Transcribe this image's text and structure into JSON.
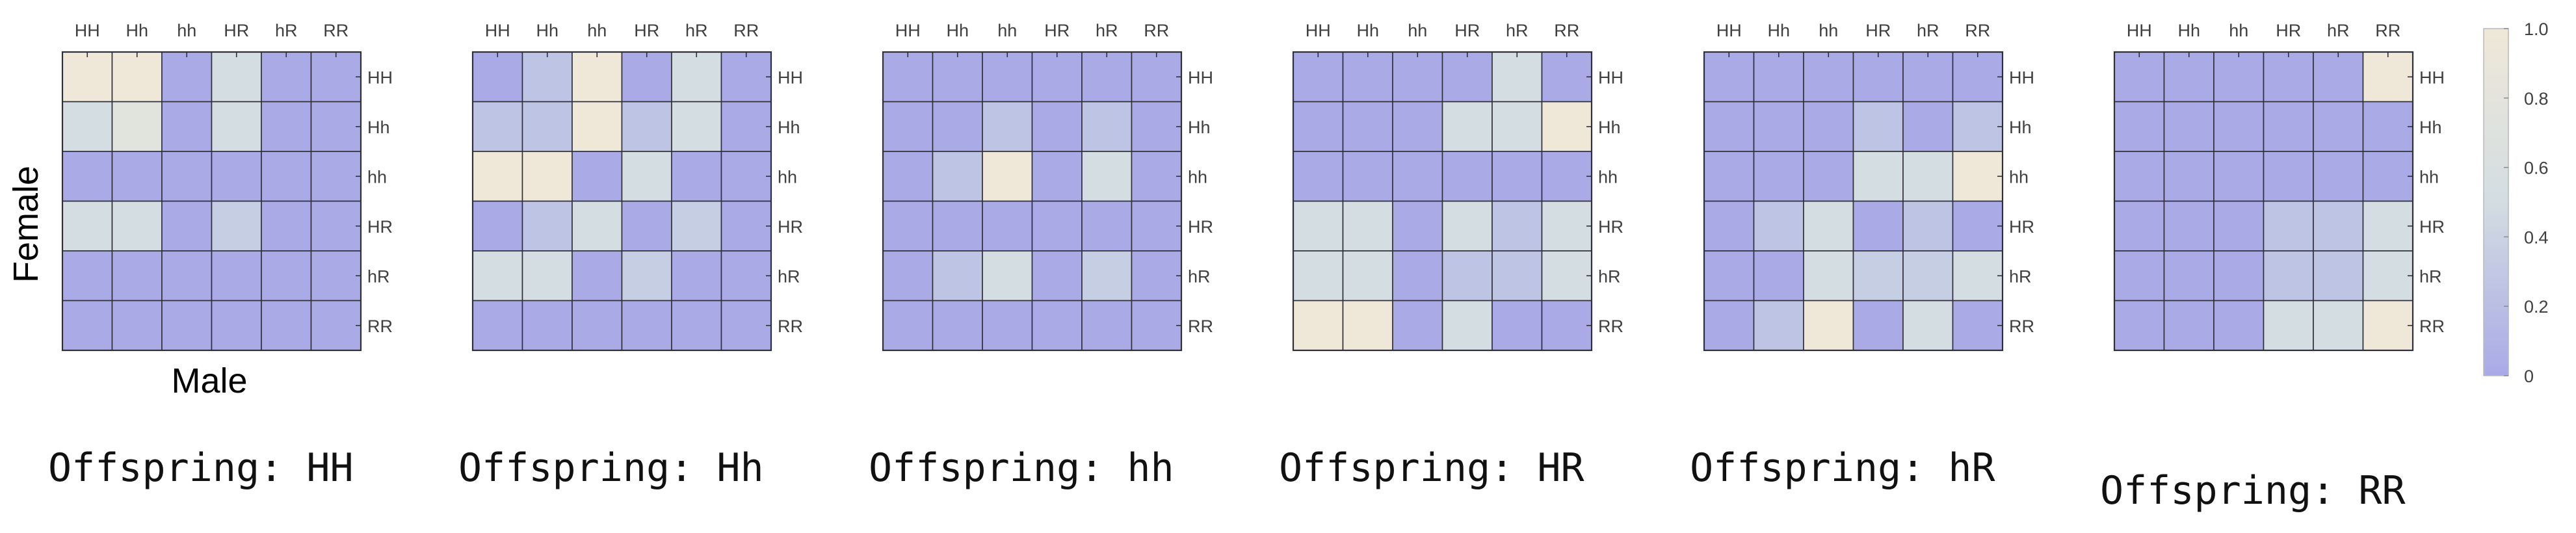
{
  "figure": {
    "ylabel": "Female",
    "xlabel": "Male",
    "colorbar_ticks": [
      "0",
      "0.2",
      "0.4",
      "0.6",
      "0.8",
      "1.0"
    ]
  },
  "chart_data": {
    "type": "heatmap",
    "xlabel": "Male",
    "ylabel": "Female",
    "clim": [
      0,
      1
    ],
    "colormap": {
      "low": "#a9aae6",
      "mid": "#d3dde2",
      "high": "#efe8d8"
    },
    "grid": true,
    "categories": [
      "HH",
      "Hh",
      "hh",
      "HR",
      "hR",
      "RR"
    ],
    "panels": [
      {
        "title": "Offspring: HH",
        "values": [
          [
            1.0,
            1.0,
            0,
            0.5,
            0,
            0
          ],
          [
            0.5,
            0.75,
            0,
            0.5,
            0,
            0
          ],
          [
            0,
            0,
            0,
            0,
            0,
            0
          ],
          [
            0.5,
            0.5,
            0,
            0.35,
            0,
            0
          ],
          [
            0,
            0,
            0,
            0,
            0,
            0
          ],
          [
            0,
            0,
            0,
            0,
            0,
            0
          ]
        ]
      },
      {
        "title": "Offspring: Hh",
        "values": [
          [
            0,
            0.25,
            1.0,
            0,
            0.5,
            0
          ],
          [
            0.25,
            0.25,
            1.0,
            0.25,
            0.5,
            0
          ],
          [
            1.0,
            1.0,
            0,
            0.5,
            0,
            0
          ],
          [
            0,
            0.25,
            0.5,
            0,
            0.35,
            0
          ],
          [
            0.5,
            0.5,
            0,
            0.35,
            0,
            0
          ],
          [
            0,
            0,
            0,
            0,
            0,
            0
          ]
        ]
      },
      {
        "title": "Offspring: hh",
        "values": [
          [
            0,
            0,
            0,
            0,
            0,
            0
          ],
          [
            0,
            0,
            0.25,
            0,
            0.25,
            0
          ],
          [
            0,
            0.25,
            1.0,
            0,
            0.5,
            0
          ],
          [
            0,
            0,
            0,
            0,
            0,
            0
          ],
          [
            0,
            0.25,
            0.5,
            0,
            0.35,
            0
          ],
          [
            0,
            0,
            0,
            0,
            0,
            0
          ]
        ]
      },
      {
        "title": "Offspring: HR",
        "values": [
          [
            0,
            0,
            0,
            0,
            0.5,
            0
          ],
          [
            0,
            0,
            0,
            0.5,
            0.5,
            1.0
          ],
          [
            0,
            0,
            0,
            0,
            0,
            0
          ],
          [
            0.5,
            0.5,
            0,
            0.5,
            0.25,
            0.5
          ],
          [
            0.5,
            0.5,
            0,
            0.25,
            0.25,
            0.5
          ],
          [
            1.0,
            1.0,
            0,
            0.5,
            0,
            0
          ]
        ]
      },
      {
        "title": "Offspring: hR",
        "values": [
          [
            0,
            0,
            0,
            0,
            0,
            0
          ],
          [
            0,
            0,
            0,
            0.25,
            0,
            0.25
          ],
          [
            0,
            0,
            0,
            0.5,
            0.5,
            1.0
          ],
          [
            0,
            0.25,
            0.5,
            0,
            0.25,
            0
          ],
          [
            0,
            0,
            0.5,
            0.35,
            0.35,
            0.5
          ],
          [
            0,
            0.25,
            1.0,
            0,
            0.5,
            0
          ]
        ]
      },
      {
        "title": "Offspring: RR",
        "values": [
          [
            0,
            0,
            0,
            0,
            0,
            1.0
          ],
          [
            0,
            0,
            0,
            0,
            0,
            0
          ],
          [
            0,
            0,
            0,
            0,
            0,
            0
          ],
          [
            0,
            0,
            0,
            0.25,
            0.25,
            0.5
          ],
          [
            0,
            0,
            0,
            0.25,
            0.25,
            0.5
          ],
          [
            0,
            0,
            0,
            0.5,
            0.5,
            1.0
          ]
        ]
      }
    ]
  }
}
